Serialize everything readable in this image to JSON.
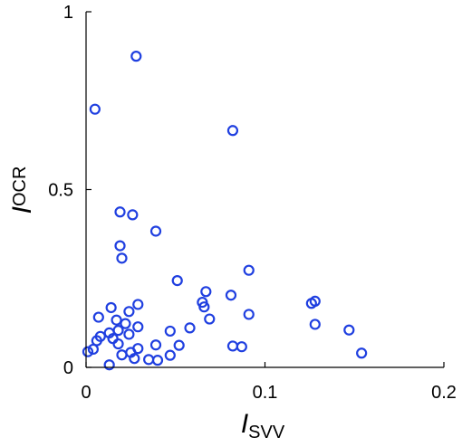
{
  "chart_data": {
    "type": "scatter",
    "title": "",
    "xlabel": {
      "main": "I",
      "sub": "SVV"
    },
    "ylabel": {
      "main": "I",
      "sub": "OCR"
    },
    "xlim": [
      0,
      0.2
    ],
    "ylim": [
      0,
      1
    ],
    "x_ticks": [
      0,
      0.1,
      0.2
    ],
    "x_tick_labels": [
      "0",
      "0.1",
      "0.2"
    ],
    "y_ticks": [
      0,
      0.5,
      1
    ],
    "y_tick_labels": [
      "0",
      "0.5",
      "1"
    ],
    "grid": false,
    "marker": "open-circle",
    "marker_color": "#1f3fe0",
    "series": [
      {
        "points": [
          [
            0.028,
            0.875
          ],
          [
            0.005,
            0.726
          ],
          [
            0.082,
            0.666
          ],
          [
            0.019,
            0.437
          ],
          [
            0.026,
            0.429
          ],
          [
            0.039,
            0.383
          ],
          [
            0.019,
            0.342
          ],
          [
            0.02,
            0.307
          ],
          [
            0.091,
            0.273
          ],
          [
            0.051,
            0.244
          ],
          [
            0.067,
            0.213
          ],
          [
            0.081,
            0.203
          ],
          [
            0.065,
            0.183
          ],
          [
            0.066,
            0.17
          ],
          [
            0.029,
            0.177
          ],
          [
            0.014,
            0.168
          ],
          [
            0.128,
            0.186
          ],
          [
            0.126,
            0.18
          ],
          [
            0.024,
            0.157
          ],
          [
            0.091,
            0.149
          ],
          [
            0.007,
            0.141
          ],
          [
            0.069,
            0.136
          ],
          [
            0.017,
            0.133
          ],
          [
            0.022,
            0.123
          ],
          [
            0.128,
            0.121
          ],
          [
            0.029,
            0.114
          ],
          [
            0.058,
            0.111
          ],
          [
            0.147,
            0.105
          ],
          [
            0.047,
            0.102
          ],
          [
            0.018,
            0.104
          ],
          [
            0.013,
            0.097
          ],
          [
            0.024,
            0.093
          ],
          [
            0.008,
            0.087
          ],
          [
            0.015,
            0.081
          ],
          [
            0.006,
            0.075
          ],
          [
            0.018,
            0.066
          ],
          [
            0.039,
            0.063
          ],
          [
            0.052,
            0.062
          ],
          [
            0.082,
            0.06
          ],
          [
            0.087,
            0.058
          ],
          [
            0.029,
            0.053
          ],
          [
            0.004,
            0.051
          ],
          [
            0.001,
            0.044
          ],
          [
            0.025,
            0.042
          ],
          [
            0.154,
            0.04
          ],
          [
            0.02,
            0.035
          ],
          [
            0.047,
            0.034
          ],
          [
            0.027,
            0.025
          ],
          [
            0.035,
            0.022
          ],
          [
            0.04,
            0.02
          ],
          [
            0.013,
            0.007
          ]
        ]
      }
    ]
  }
}
